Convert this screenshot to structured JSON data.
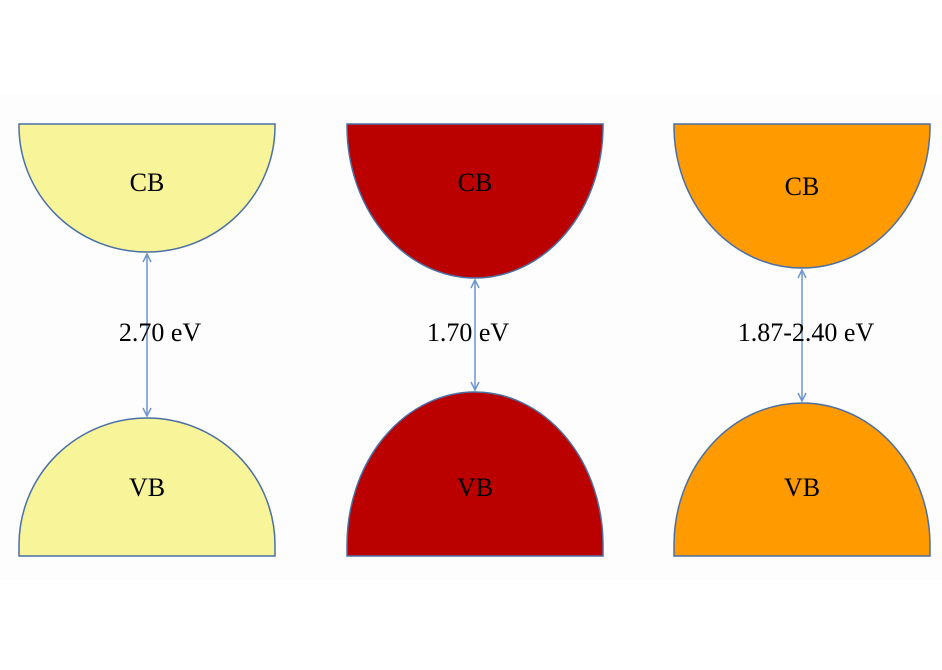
{
  "panels": [
    {
      "cb": "CB",
      "vb": "VB",
      "gap": "2.70 eV"
    },
    {
      "cb": "CB",
      "vb": "VB",
      "gap": "1.70 eV"
    },
    {
      "cb": "CB",
      "vb": "VB",
      "gap": "1.87-2.40 eV"
    }
  ]
}
